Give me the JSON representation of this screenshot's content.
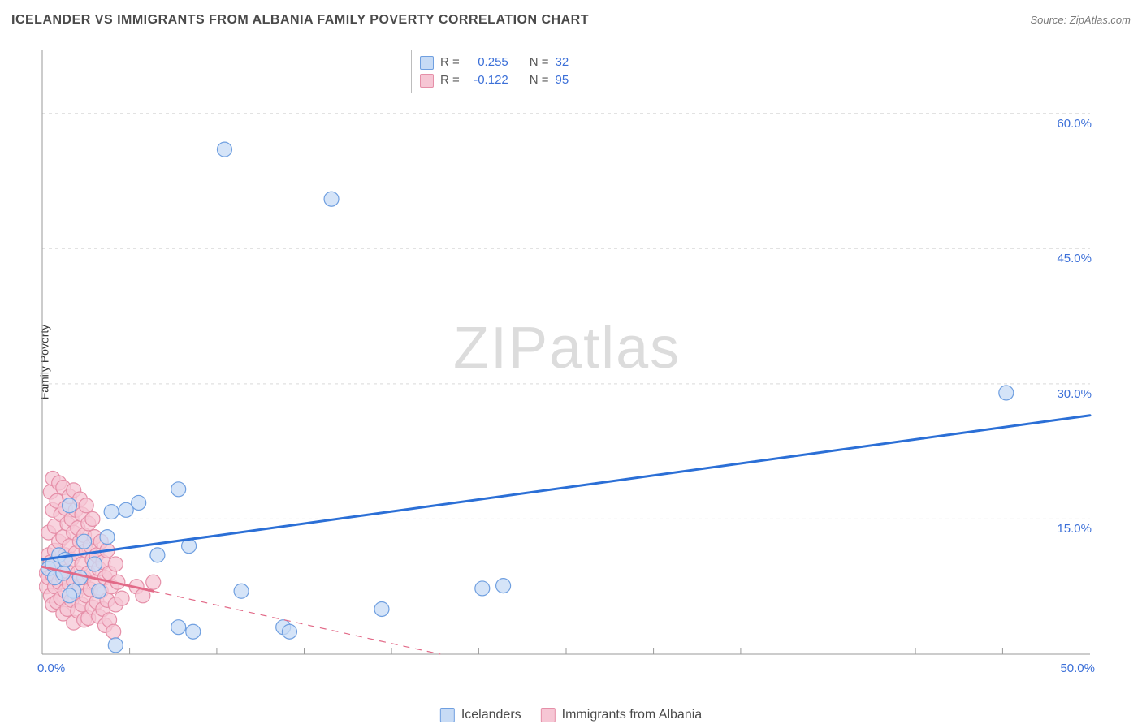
{
  "header": {
    "title": "ICELANDER VS IMMIGRANTS FROM ALBANIA FAMILY POVERTY CORRELATION CHART",
    "source_prefix": "Source: ",
    "source_name": "ZipAtlas.com"
  },
  "watermark": {
    "z": "Z",
    "i": "I",
    "p": "P",
    "rest": "atlas"
  },
  "chart": {
    "type": "scatter",
    "ylabel": "Family Poverty",
    "xlim": [
      0,
      50
    ],
    "ylim": [
      0,
      67
    ],
    "background_color": "#ffffff",
    "grid_color": "#d9d9d9",
    "axis_color": "#9a9a9a",
    "x_ticks_major": [
      0,
      50
    ],
    "x_tick_labels": [
      "0.0%",
      "50.0%"
    ],
    "x_ticks_minor": [
      4.17,
      8.33,
      12.5,
      16.67,
      20.83,
      25,
      29.17,
      33.33,
      37.5,
      41.67,
      45.83
    ],
    "y_gridlines": [
      15,
      30,
      45,
      60
    ],
    "y_tick_labels": [
      "15.0%",
      "30.0%",
      "45.0%",
      "60.0%"
    ],
    "series_a": {
      "label": "Icelanders",
      "fill": "#c7dbf5",
      "stroke": "#6f9fe0",
      "marker_radius": 9,
      "trend": {
        "color": "#2b6fd6",
        "width": 3,
        "x1": 0,
        "y1": 10.5,
        "x2": 50,
        "y2": 26.5
      },
      "points": [
        [
          0.3,
          9.5
        ],
        [
          0.5,
          10
        ],
        [
          0.6,
          8.5
        ],
        [
          0.8,
          11
        ],
        [
          1.0,
          9
        ],
        [
          1.1,
          10.5
        ],
        [
          1.3,
          16.5
        ],
        [
          1.5,
          7
        ],
        [
          1.8,
          8.5
        ],
        [
          1.3,
          6.5
        ],
        [
          2.0,
          12.5
        ],
        [
          2.5,
          10
        ],
        [
          2.7,
          7.0
        ],
        [
          3.1,
          13.0
        ],
        [
          3.5,
          1.0
        ],
        [
          4.0,
          16.0
        ],
        [
          4.6,
          16.8
        ],
        [
          5.5,
          11.0
        ],
        [
          6.5,
          3.0
        ],
        [
          6.5,
          18.3
        ],
        [
          7.0,
          12.0
        ],
        [
          7.2,
          2.5
        ],
        [
          8.7,
          56.0
        ],
        [
          9.5,
          7.0
        ],
        [
          11.5,
          3.0
        ],
        [
          11.8,
          2.5
        ],
        [
          13.8,
          50.5
        ],
        [
          16.2,
          5.0
        ],
        [
          21.0,
          7.3
        ],
        [
          22.0,
          7.6
        ],
        [
          46.0,
          29.0
        ],
        [
          3.3,
          15.8
        ]
      ]
    },
    "series_b": {
      "label": "Immigrants from Albania",
      "fill": "#f6c6d4",
      "stroke": "#e58fa8",
      "marker_radius": 9,
      "trend": {
        "color": "#e26a88",
        "width": 3,
        "solid_until_x": 5.3,
        "x1": 0,
        "y1": 9.7,
        "x2": 19,
        "y2": 0
      },
      "points": [
        [
          0.2,
          9.0
        ],
        [
          0.2,
          7.5
        ],
        [
          0.3,
          8.5
        ],
        [
          0.3,
          11.0
        ],
        [
          0.3,
          13.5
        ],
        [
          0.4,
          18.0
        ],
        [
          0.4,
          10.2
        ],
        [
          0.4,
          6.5
        ],
        [
          0.5,
          19.5
        ],
        [
          0.5,
          16.0
        ],
        [
          0.5,
          8.8
        ],
        [
          0.5,
          5.5
        ],
        [
          0.6,
          14.2
        ],
        [
          0.6,
          11.5
        ],
        [
          0.6,
          7.5
        ],
        [
          0.7,
          17.0
        ],
        [
          0.7,
          9.5
        ],
        [
          0.7,
          5.8
        ],
        [
          0.8,
          19.0
        ],
        [
          0.8,
          12.5
        ],
        [
          0.8,
          8.0
        ],
        [
          0.9,
          15.5
        ],
        [
          0.9,
          10.0
        ],
        [
          0.9,
          6.2
        ],
        [
          1.0,
          18.5
        ],
        [
          1.0,
          13.0
        ],
        [
          1.0,
          8.5
        ],
        [
          1.0,
          4.5
        ],
        [
          1.1,
          16.2
        ],
        [
          1.1,
          11.0
        ],
        [
          1.1,
          7.0
        ],
        [
          1.2,
          14.5
        ],
        [
          1.2,
          9.2
        ],
        [
          1.2,
          5.0
        ],
        [
          1.3,
          17.5
        ],
        [
          1.3,
          12.0
        ],
        [
          1.3,
          7.8
        ],
        [
          1.4,
          15.0
        ],
        [
          1.4,
          10.5
        ],
        [
          1.4,
          6.0
        ],
        [
          1.5,
          18.2
        ],
        [
          1.5,
          13.5
        ],
        [
          1.5,
          8.2
        ],
        [
          1.5,
          3.5
        ],
        [
          1.6,
          16.0
        ],
        [
          1.6,
          11.2
        ],
        [
          1.6,
          6.8
        ],
        [
          1.7,
          14.0
        ],
        [
          1.7,
          9.0
        ],
        [
          1.7,
          4.8
        ],
        [
          1.8,
          17.2
        ],
        [
          1.8,
          12.5
        ],
        [
          1.8,
          7.5
        ],
        [
          1.9,
          15.5
        ],
        [
          1.9,
          10.0
        ],
        [
          1.9,
          5.5
        ],
        [
          2.0,
          13.2
        ],
        [
          2.0,
          8.5
        ],
        [
          2.0,
          3.8
        ],
        [
          2.1,
          16.5
        ],
        [
          2.1,
          11.5
        ],
        [
          2.1,
          6.5
        ],
        [
          2.2,
          14.5
        ],
        [
          2.2,
          9.0
        ],
        [
          2.2,
          4.0
        ],
        [
          2.3,
          12.0
        ],
        [
          2.3,
          7.2
        ],
        [
          2.4,
          15.0
        ],
        [
          2.4,
          10.5
        ],
        [
          2.4,
          5.2
        ],
        [
          2.5,
          13.0
        ],
        [
          2.5,
          8.0
        ],
        [
          2.6,
          11.0
        ],
        [
          2.6,
          5.8
        ],
        [
          2.7,
          9.5
        ],
        [
          2.7,
          4.2
        ],
        [
          2.8,
          12.5
        ],
        [
          2.8,
          7.0
        ],
        [
          2.9,
          10.2
        ],
        [
          2.9,
          5.0
        ],
        [
          3.0,
          8.5
        ],
        [
          3.0,
          3.2
        ],
        [
          3.1,
          11.5
        ],
        [
          3.1,
          6.0
        ],
        [
          3.2,
          9.0
        ],
        [
          3.2,
          3.8
        ],
        [
          3.3,
          7.5
        ],
        [
          3.4,
          2.5
        ],
        [
          3.5,
          10.0
        ],
        [
          3.5,
          5.5
        ],
        [
          3.6,
          8.0
        ],
        [
          3.8,
          6.2
        ],
        [
          4.5,
          7.5
        ],
        [
          4.8,
          6.5
        ],
        [
          5.3,
          8.0
        ]
      ]
    },
    "stats_box": {
      "rows": [
        {
          "swatch_fill": "#c7dbf5",
          "swatch_stroke": "#6f9fe0",
          "r_label": "R =",
          "r_value": "0.255",
          "n_label": "N =",
          "n_value": "32"
        },
        {
          "swatch_fill": "#f6c6d4",
          "swatch_stroke": "#e58fa8",
          "r_label": "R =",
          "r_value": "-0.122",
          "n_label": "N =",
          "n_value": "95"
        }
      ]
    },
    "bottom_legend": [
      {
        "fill": "#c7dbf5",
        "stroke": "#6f9fe0",
        "label": "Icelanders"
      },
      {
        "fill": "#f6c6d4",
        "stroke": "#e58fa8",
        "label": "Immigrants from Albania"
      }
    ]
  }
}
